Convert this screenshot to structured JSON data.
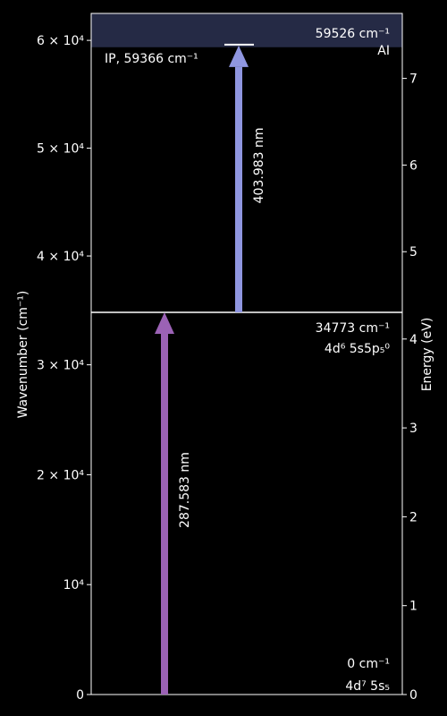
{
  "colors": {
    "background": "#000000",
    "foreground": "#ffffff",
    "ionization_band": "#252a45",
    "arrow_uv": "#9b62b5",
    "arrow_blue": "#8f96e0"
  },
  "axes": {
    "left_label": "Wavenumber (cm⁻¹)",
    "right_label": "Energy (eV)",
    "left_ticks": [
      {
        "value": 0,
        "label": "0"
      },
      {
        "value": 10000,
        "label": "10⁴"
      },
      {
        "value": 20000,
        "label": "2 × 10⁴"
      },
      {
        "value": 30000,
        "label": "3 × 10⁴"
      },
      {
        "value": 40000,
        "label": "4 × 10⁴"
      },
      {
        "value": 50000,
        "label": "5 × 10⁴"
      },
      {
        "value": 60000,
        "label": "6 × 10⁴"
      }
    ],
    "right_ticks": [
      {
        "value": 0,
        "label": "0"
      },
      {
        "value": 1,
        "label": "1"
      },
      {
        "value": 2,
        "label": "2"
      },
      {
        "value": 3,
        "label": "3"
      },
      {
        "value": 4,
        "label": "4"
      },
      {
        "value": 5,
        "label": "5"
      },
      {
        "value": 6,
        "label": "6"
      },
      {
        "value": 7,
        "label": "7"
      }
    ],
    "lower_panel_range_cm": [
      0,
      34773
    ],
    "upper_panel_range_cm": [
      34773,
      62500
    ],
    "upper_panel_range_ev": [
      4.3,
      7.75
    ]
  },
  "levels": [
    {
      "energy_cm": 0,
      "energy_label": "0 cm⁻¹",
      "config": "4d⁷ 5s₅"
    },
    {
      "energy_cm": 34773,
      "energy_label": "34773 cm⁻¹",
      "config": "4d⁶ 5s5p₅⁰"
    },
    {
      "energy_cm": 59526,
      "energy_label": "59526 cm⁻¹",
      "config": "AI"
    }
  ],
  "ionization": {
    "energy_cm": 59366,
    "label": "IP, 59366 cm⁻¹"
  },
  "transitions": [
    {
      "from_cm": 0,
      "to_cm": 34773,
      "wavelength_label": "287.583 nm",
      "color": "#9b62b5"
    },
    {
      "from_cm": 34773,
      "to_cm": 59526,
      "wavelength_label": "403.983 nm",
      "color": "#8f96e0"
    }
  ]
}
